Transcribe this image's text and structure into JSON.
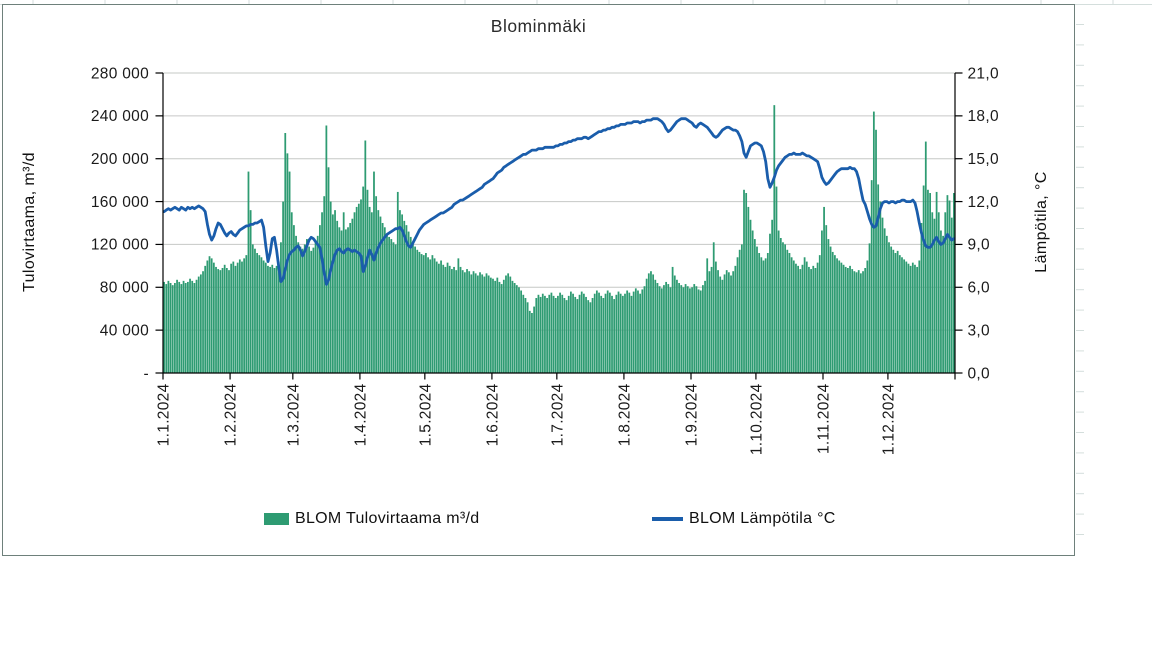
{
  "colors": {
    "bar_green": "#2E9B72",
    "line_blue": "#1A5DAB",
    "gridline": "#C6C8C6",
    "axis": "#000000",
    "chart_border": "#6E807B",
    "worksheet_gridline": "#D4DEDC"
  },
  "chart_data": {
    "type": "bar",
    "title": "Blominmäki",
    "x_start": "1.1.2024",
    "x_end": "31.12.2024",
    "frequency": "daily",
    "x_tick_labels": [
      "1.1.2024",
      "1.2.2024",
      "1.3.2024",
      "1.4.2024",
      "1.5.2024",
      "1.6.2024",
      "1.7.2024",
      "1.8.2024",
      "1.9.2024",
      "1.10.2024",
      "1.11.2024",
      "1.12.2024"
    ],
    "month_day_counts": [
      31,
      29,
      31,
      30,
      31,
      30,
      31,
      31,
      30,
      31,
      30,
      31
    ],
    "ylabel_left": "Tulovirtaama, m³/d",
    "ylabel_right": "Lämpötila, °C",
    "ylim_left": [
      0,
      280000
    ],
    "ylim_right": [
      0,
      21.0
    ],
    "y_left_tick_labels": [
      "-",
      "40 000",
      "80 000",
      "120 000",
      "160 000",
      "200 000",
      "240 000",
      "280 000"
    ],
    "y_right_tick_labels": [
      "0,0",
      "3,0",
      "6,0",
      "9,0",
      "12,0",
      "15,0",
      "18,0",
      "21,0"
    ],
    "grid": "horizontal",
    "legend_position": "bottom",
    "series": [
      {
        "name": "BLOM Tulovirtaama m³/d",
        "type": "bar",
        "axis": "left",
        "color": "#2E9B72",
        "values": [
          85000,
          83000,
          86000,
          84000,
          82000,
          84000,
          87000,
          85000,
          83000,
          86000,
          84000,
          85000,
          88000,
          86000,
          84000,
          87000,
          90000,
          92000,
          95000,
          100000,
          105000,
          109000,
          107000,
          103000,
          99000,
          97000,
          96000,
          98000,
          101000,
          98000,
          96000,
          102000,
          104000,
          100000,
          103000,
          106000,
          104000,
          107000,
          110000,
          188000,
          152000,
          120000,
          116000,
          112000,
          110000,
          108000,
          105000,
          103000,
          100000,
          99000,
          101000,
          98000,
          100000,
          104000,
          122000,
          160000,
          224000,
          205000,
          188000,
          150000,
          138000,
          128000,
          122000,
          118000,
          116000,
          120000,
          125000,
          118000,
          114000,
          117000,
          122000,
          128000,
          138000,
          150000,
          165000,
          231000,
          192000,
          160000,
          148000,
          152000,
          142000,
          136000,
          133000,
          150000,
          134000,
          136000,
          140000,
          144000,
          150000,
          155000,
          158000,
          162000,
          174000,
          217000,
          171000,
          155000,
          150000,
          188000,
          165000,
          152000,
          146000,
          140000,
          136000,
          130000,
          127000,
          125000,
          122000,
          120000,
          169000,
          152000,
          148000,
          142000,
          138000,
          132000,
          127000,
          122000,
          118000,
          115000,
          113000,
          111000,
          110000,
          112000,
          108000,
          106000,
          110000,
          107000,
          104000,
          102000,
          105000,
          101000,
          99000,
          103000,
          100000,
          97000,
          99000,
          96000,
          107000,
          99000,
          96000,
          94000,
          97000,
          95000,
          92000,
          95000,
          93000,
          91000,
          94000,
          92000,
          90000,
          93000,
          91000,
          89000,
          88000,
          86000,
          89000,
          85000,
          83000,
          87000,
          91000,
          93000,
          90000,
          86000,
          84000,
          82000,
          80000,
          77000,
          73000,
          70000,
          66000,
          58000,
          56000,
          62000,
          70000,
          73000,
          71000,
          74000,
          72000,
          70000,
          73000,
          75000,
          72000,
          70000,
          72000,
          75000,
          73000,
          70000,
          68000,
          72000,
          76000,
          74000,
          71000,
          69000,
          73000,
          76000,
          74000,
          71000,
          68000,
          66000,
          70000,
          74000,
          77000,
          75000,
          72000,
          70000,
          74000,
          77000,
          75000,
          72000,
          69000,
          73000,
          76000,
          74000,
          72000,
          74000,
          77000,
          75000,
          72000,
          76000,
          79000,
          77000,
          74000,
          78000,
          81000,
          88000,
          93000,
          95000,
          92000,
          87000,
          84000,
          81000,
          79000,
          82000,
          85000,
          83000,
          80000,
          99000,
          91000,
          87000,
          84000,
          82000,
          80000,
          83000,
          81000,
          79000,
          80000,
          83000,
          81000,
          78000,
          77000,
          82000,
          86000,
          107000,
          95000,
          99000,
          122000,
          104000,
          96000,
          90000,
          87000,
          92000,
          96000,
          94000,
          91000,
          95000,
          100000,
          108000,
          115000,
          120000,
          171000,
          168000,
          155000,
          143000,
          133000,
          125000,
          118000,
          112000,
          108000,
          105000,
          107000,
          112000,
          130000,
          143000,
          250000,
          174000,
          133000,
          126000,
          122000,
          120000,
          115000,
          112000,
          108000,
          105000,
          102000,
          100000,
          97000,
          101000,
          108000,
          104000,
          99000,
          97000,
          100000,
          98000,
          103000,
          110000,
          133000,
          155000,
          138000,
          125000,
          118000,
          113000,
          110000,
          107000,
          105000,
          103000,
          101000,
          99000,
          98000,
          100000,
          97000,
          95000,
          94000,
          96000,
          93000,
          95000,
          98000,
          105000,
          121000,
          180000,
          244000,
          227000,
          176000,
          160000,
          145000,
          135000,
          128000,
          122000,
          118000,
          115000,
          112000,
          114000,
          110000,
          108000,
          106000,
          104000,
          102000,
          100000,
          103000,
          101000,
          99000,
          105000,
          140000,
          175000,
          216000,
          171000,
          168000,
          150000,
          144000,
          169000,
          150000,
          133000,
          128000,
          150000,
          166000,
          161000,
          145000,
          168000
        ]
      },
      {
        "name": "BLOM Lämpötila °C",
        "type": "line",
        "axis": "right",
        "color": "#1A5DAB",
        "values": [
          11.3,
          11.4,
          11.5,
          11.4,
          11.5,
          11.6,
          11.5,
          11.4,
          11.6,
          11.5,
          11.4,
          11.6,
          11.5,
          11.6,
          11.5,
          11.6,
          11.7,
          11.6,
          11.5,
          11.3,
          10.4,
          9.7,
          9.3,
          9.6,
          10.1,
          10.5,
          10.4,
          10.1,
          9.8,
          9.6,
          9.8,
          9.9,
          9.7,
          9.6,
          9.8,
          10.0,
          10.1,
          10.2,
          10.3,
          10.3,
          10.4,
          10.4,
          10.5,
          10.5,
          10.6,
          10.7,
          10.2,
          8.9,
          7.8,
          8.4,
          9.4,
          9.5,
          8.6,
          7.4,
          6.4,
          6.6,
          7.3,
          7.9,
          8.3,
          8.5,
          8.6,
          8.8,
          8.9,
          8.6,
          8.2,
          8.5,
          8.9,
          9.3,
          9.5,
          9.4,
          9.2,
          9.0,
          8.8,
          8.0,
          7.0,
          6.2,
          6.5,
          7.2,
          7.8,
          8.3,
          8.6,
          8.7,
          8.5,
          8.4,
          8.6,
          8.7,
          8.6,
          8.5,
          8.6,
          8.5,
          8.4,
          8.2,
          7.1,
          7.5,
          8.1,
          8.6,
          8.3,
          7.9,
          8.4,
          8.8,
          9.1,
          9.3,
          9.5,
          9.7,
          9.8,
          9.9,
          10.0,
          10.1,
          10.1,
          10.2,
          10.0,
          9.6,
          9.2,
          8.9,
          8.8,
          9.1,
          9.4,
          9.7,
          10.0,
          10.2,
          10.4,
          10.5,
          10.6,
          10.7,
          10.8,
          10.9,
          11.0,
          11.1,
          11.2,
          11.2,
          11.3,
          11.4,
          11.5,
          11.6,
          11.8,
          11.9,
          12.0,
          12.1,
          12.1,
          12.2,
          12.3,
          12.4,
          12.5,
          12.6,
          12.7,
          12.8,
          12.9,
          13.0,
          13.2,
          13.3,
          13.4,
          13.5,
          13.6,
          13.8,
          14.0,
          14.1,
          14.2,
          14.4,
          14.5,
          14.6,
          14.7,
          14.8,
          14.9,
          15.0,
          15.1,
          15.2,
          15.3,
          15.3,
          15.4,
          15.5,
          15.6,
          15.6,
          15.6,
          15.7,
          15.7,
          15.7,
          15.8,
          15.8,
          15.8,
          15.8,
          15.8,
          15.9,
          15.9,
          16.0,
          16.0,
          16.1,
          16.1,
          16.2,
          16.2,
          16.3,
          16.3,
          16.4,
          16.4,
          16.4,
          16.5,
          16.5,
          16.4,
          16.5,
          16.6,
          16.7,
          16.8,
          16.9,
          16.9,
          17.0,
          17.0,
          17.1,
          17.1,
          17.2,
          17.2,
          17.3,
          17.3,
          17.4,
          17.4,
          17.4,
          17.5,
          17.5,
          17.5,
          17.6,
          17.6,
          17.6,
          17.5,
          17.6,
          17.6,
          17.7,
          17.7,
          17.7,
          17.8,
          17.8,
          17.8,
          17.7,
          17.6,
          17.4,
          17.1,
          16.9,
          17.0,
          17.2,
          17.4,
          17.6,
          17.7,
          17.8,
          17.8,
          17.8,
          17.7,
          17.6,
          17.5,
          17.3,
          17.2,
          17.4,
          17.5,
          17.4,
          17.3,
          17.2,
          17.0,
          16.8,
          16.6,
          16.5,
          16.6,
          16.8,
          17.0,
          17.1,
          17.2,
          17.2,
          17.1,
          17.0,
          17.0,
          16.9,
          16.6,
          16.2,
          15.4,
          15.1,
          15.5,
          15.9,
          16.0,
          16.1,
          16.1,
          16.0,
          15.9,
          15.5,
          14.8,
          13.6,
          13.0,
          13.3,
          13.7,
          14.2,
          14.5,
          14.7,
          14.9,
          15.1,
          15.2,
          15.3,
          15.3,
          15.4,
          15.3,
          15.3,
          15.3,
          15.4,
          15.3,
          15.2,
          15.2,
          15.1,
          15.0,
          14.9,
          14.8,
          14.3,
          13.7,
          13.4,
          13.2,
          13.3,
          13.5,
          13.7,
          13.9,
          14.1,
          14.2,
          14.3,
          14.3,
          14.3,
          14.3,
          14.4,
          14.3,
          14.3,
          14.1,
          13.6,
          12.8,
          12.1,
          11.8,
          11.3,
          10.8,
          10.4,
          10.2,
          10.3,
          10.9,
          11.5,
          11.9,
          12.0,
          12.0,
          11.9,
          12.0,
          12.0,
          11.9,
          12.0,
          12.0,
          12.1,
          12.1,
          12.0,
          12.0,
          12.0,
          12.1,
          11.9,
          11.3,
          10.5,
          9.8,
          9.3,
          8.9,
          8.8,
          8.8,
          9.0,
          9.3,
          9.5,
          9.2,
          9.0,
          9.1,
          9.4,
          9.7,
          9.5,
          9.3,
          9.4
        ]
      }
    ]
  }
}
